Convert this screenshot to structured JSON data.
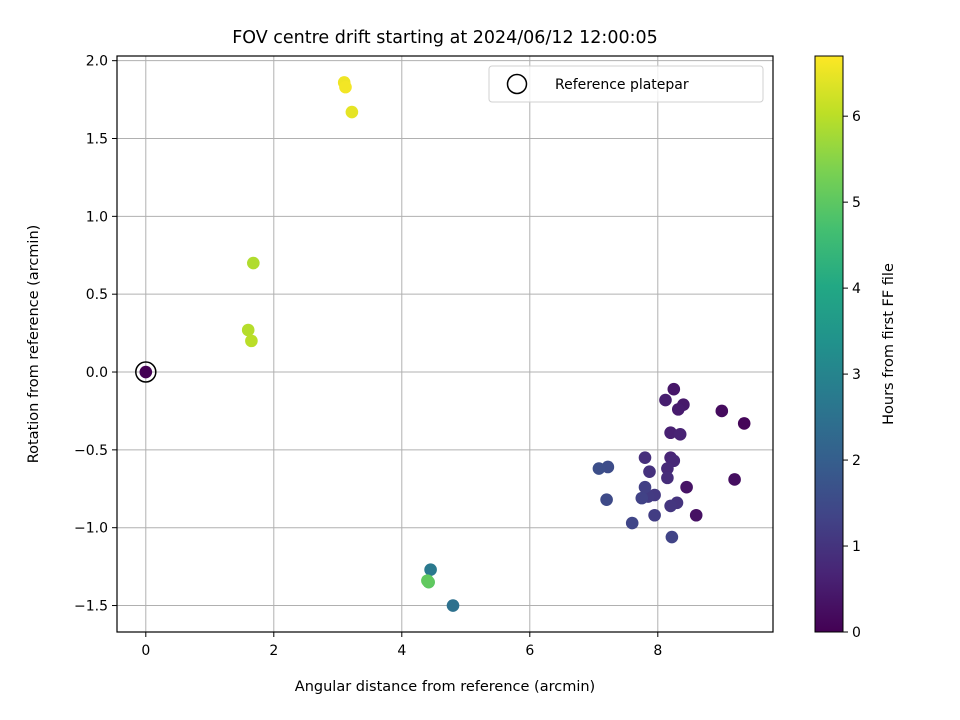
{
  "chart_data": {
    "type": "scatter",
    "title": "FOV centre drift starting at 2024/06/12 12:00:05",
    "xlabel": "Angular distance from reference (arcmin)",
    "ylabel": "Rotation from reference (arcmin)",
    "xlim": [
      -0.45,
      9.8
    ],
    "ylim": [
      -1.67,
      2.03
    ],
    "xticks": [
      0,
      2,
      4,
      6,
      8
    ],
    "xtick_labels": [
      "0",
      "2",
      "4",
      "6",
      "8"
    ],
    "yticks": [
      -1.5,
      -1.0,
      -0.5,
      0.0,
      0.5,
      1.0,
      1.5,
      2.0
    ],
    "ytick_labels": [
      "−1.5",
      "−1.0",
      "−0.5",
      "0.0",
      "0.5",
      "1.0",
      "1.5",
      "2.0"
    ],
    "grid": true,
    "legend": {
      "entries": [
        "Reference platepar"
      ],
      "location": "upper right"
    },
    "reference_point": {
      "x": 0,
      "y": 0
    },
    "colorbar": {
      "label": "Hours from first FF file",
      "colormap": "viridis",
      "range": [
        0,
        6.7
      ],
      "ticks": [
        0,
        1,
        2,
        3,
        4,
        5,
        6
      ],
      "tick_labels": [
        "0",
        "1",
        "2",
        "3",
        "4",
        "5",
        "6"
      ]
    },
    "points": [
      {
        "x": 0.0,
        "y": 0.0,
        "c": 0.0
      },
      {
        "x": 9.0,
        "y": -0.25,
        "c": 0.2
      },
      {
        "x": 9.35,
        "y": -0.33,
        "c": 0.1
      },
      {
        "x": 9.2,
        "y": -0.69,
        "c": 0.25
      },
      {
        "x": 8.6,
        "y": -0.92,
        "c": 0.3
      },
      {
        "x": 8.45,
        "y": -0.74,
        "c": 0.35
      },
      {
        "x": 8.25,
        "y": -0.11,
        "c": 0.4
      },
      {
        "x": 8.4,
        "y": -0.21,
        "c": 0.45
      },
      {
        "x": 8.32,
        "y": -0.24,
        "c": 0.5
      },
      {
        "x": 8.12,
        "y": -0.18,
        "c": 0.55
      },
      {
        "x": 8.2,
        "y": -0.39,
        "c": 0.6
      },
      {
        "x": 8.35,
        "y": -0.4,
        "c": 0.65
      },
      {
        "x": 8.2,
        "y": -0.55,
        "c": 0.7
      },
      {
        "x": 8.25,
        "y": -0.57,
        "c": 0.75
      },
      {
        "x": 8.15,
        "y": -0.62,
        "c": 0.8
      },
      {
        "x": 8.15,
        "y": -0.68,
        "c": 0.85
      },
      {
        "x": 7.8,
        "y": -0.55,
        "c": 0.9
      },
      {
        "x": 7.87,
        "y": -0.64,
        "c": 0.95
      },
      {
        "x": 8.3,
        "y": -0.84,
        "c": 1.0
      },
      {
        "x": 8.2,
        "y": -0.86,
        "c": 1.05
      },
      {
        "x": 7.95,
        "y": -0.79,
        "c": 1.1
      },
      {
        "x": 7.85,
        "y": -0.8,
        "c": 1.15
      },
      {
        "x": 7.95,
        "y": -0.92,
        "c": 1.2
      },
      {
        "x": 7.8,
        "y": -0.74,
        "c": 1.25
      },
      {
        "x": 7.75,
        "y": -0.81,
        "c": 1.3
      },
      {
        "x": 8.22,
        "y": -1.06,
        "c": 1.35
      },
      {
        "x": 7.6,
        "y": -0.97,
        "c": 1.4
      },
      {
        "x": 7.2,
        "y": -0.82,
        "c": 1.5
      },
      {
        "x": 7.22,
        "y": -0.61,
        "c": 1.55
      },
      {
        "x": 7.08,
        "y": -0.62,
        "c": 1.6
      },
      {
        "x": 4.8,
        "y": -1.5,
        "c": 2.5
      },
      {
        "x": 4.45,
        "y": -1.27,
        "c": 2.7
      },
      {
        "x": 4.42,
        "y": -1.35,
        "c": 5.0
      },
      {
        "x": 4.4,
        "y": -1.34,
        "c": 5.05
      },
      {
        "x": 1.68,
        "y": 0.7,
        "c": 5.9
      },
      {
        "x": 1.6,
        "y": 0.27,
        "c": 5.95
      },
      {
        "x": 1.65,
        "y": 0.2,
        "c": 6.0
      },
      {
        "x": 3.1,
        "y": 1.86,
        "c": 6.55
      },
      {
        "x": 3.12,
        "y": 1.83,
        "c": 6.6
      },
      {
        "x": 3.22,
        "y": 1.67,
        "c": 6.45
      }
    ]
  }
}
